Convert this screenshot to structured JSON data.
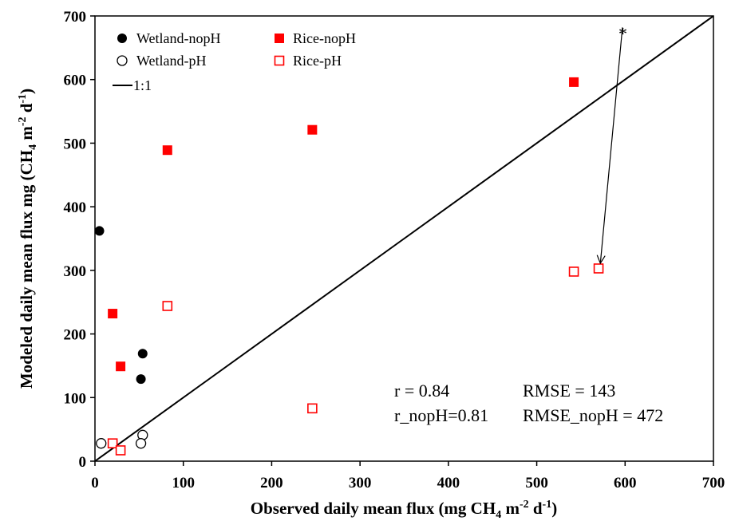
{
  "chart_data": {
    "type": "scatter",
    "title": "",
    "xlabel": {
      "main": "Observed daily mean flux (mg CH",
      "sub": "4",
      "mid": " m",
      "sup1": "-2",
      "mid2": " d",
      "sup2": "-1",
      "end": ")"
    },
    "ylabel": {
      "main": "Modeled daily mean flux mg (CH",
      "sub": "4",
      "mid": " m",
      "sup1": "-2",
      "mid2": " d",
      "sup2": "-1",
      "end": ")"
    },
    "xlim": [
      0,
      700
    ],
    "ylim": [
      0,
      700
    ],
    "xticks": [
      "0",
      "100",
      "200",
      "300",
      "400",
      "500",
      "600",
      "700"
    ],
    "yticks": [
      "0",
      "100",
      "200",
      "300",
      "400",
      "500",
      "600",
      "700"
    ],
    "grid": false,
    "legend_position": "top-left",
    "series": [
      {
        "name": "Wetland-nopH",
        "marker": "filled-circle",
        "color": "#000000",
        "points": [
          [
            5,
            362
          ],
          [
            54,
            169
          ],
          [
            52,
            129
          ]
        ]
      },
      {
        "name": "Wetland-pH",
        "marker": "open-circle",
        "color": "#000000",
        "points": [
          [
            7,
            28
          ],
          [
            54,
            41
          ],
          [
            52,
            28
          ]
        ]
      },
      {
        "name": "Rice-nopH",
        "marker": "filled-square",
        "color": "#ff0000",
        "points": [
          [
            82,
            489
          ],
          [
            246,
            521
          ],
          [
            542,
            596
          ],
          [
            20,
            232
          ],
          [
            29,
            149
          ]
        ]
      },
      {
        "name": "Rice-pH",
        "marker": "open-square",
        "color": "#ff0000",
        "points": [
          [
            82,
            244
          ],
          [
            246,
            83
          ],
          [
            542,
            298
          ],
          [
            570,
            303
          ],
          [
            20,
            28
          ],
          [
            29,
            17
          ]
        ]
      }
    ],
    "reference_line": {
      "name": "1:1",
      "from": [
        0,
        0
      ],
      "to": [
        700,
        700
      ]
    },
    "annotations": {
      "r": "r = 0.84",
      "rmse": "RMSE = 143",
      "r_nopH": "r_nopH=0.81",
      "rmse_nopH": "RMSE_nopH = 472",
      "asterisk": "*",
      "arrow": {
        "from": [
          597,
          682
        ],
        "to": [
          572,
          311
        ]
      }
    }
  }
}
